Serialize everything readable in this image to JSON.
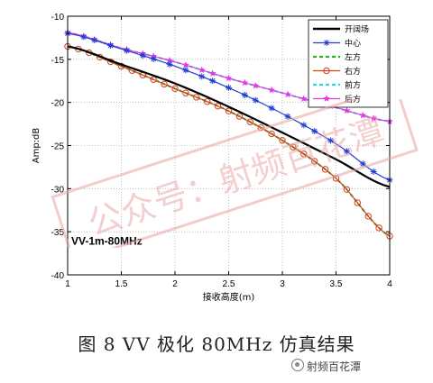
{
  "chart_data": {
    "type": "line",
    "title": "",
    "xlabel": "接收高度(m)",
    "ylabel": "Amp:dB",
    "xlim": [
      1,
      4
    ],
    "ylim": [
      -40,
      -10
    ],
    "xticks": [
      "1",
      "1.5",
      "2",
      "2.5",
      "3",
      "3.5",
      "4"
    ],
    "yticks": [
      "-10",
      "-15",
      "-20",
      "-25",
      "-30",
      "-35",
      "-40"
    ],
    "grid": true,
    "legend_position": "top-right",
    "annotation": "VV-1m-80MHz",
    "series": [
      {
        "name": "开阔场",
        "color": "#000000",
        "marker": "none",
        "line_style": "solid",
        "x": [
          1,
          1.5,
          2,
          2.5,
          3,
          3.5,
          4
        ],
        "y": [
          -13.5,
          -15.6,
          -17.8,
          -20.5,
          -23.5,
          -26.6,
          -29.8
        ]
      },
      {
        "name": "中心",
        "color": "#1f3fd0",
        "marker": "asterisk",
        "line_style": "solid",
        "x": [
          1,
          1.5,
          2,
          2.5,
          3,
          3.5,
          4
        ],
        "y": [
          -12.0,
          -13.8,
          -15.8,
          -18.3,
          -21.3,
          -24.8,
          -29.0
        ]
      },
      {
        "name": "左方",
        "color": "#22b522",
        "marker": "none",
        "line_style": "dashed",
        "x": [
          1,
          1.5,
          2,
          2.5,
          3,
          3.5,
          4
        ],
        "y": [
          -13.5,
          -15.8,
          -18.4,
          -21.0,
          -24.4,
          -28.8,
          -35.5
        ]
      },
      {
        "name": "右方",
        "color": "#d2401e",
        "marker": "circle",
        "line_style": "solid",
        "x": [
          1,
          1.5,
          2,
          2.5,
          3,
          3.5,
          4
        ],
        "y": [
          -13.5,
          -15.8,
          -18.4,
          -21.0,
          -24.4,
          -28.8,
          -35.5
        ]
      },
      {
        "name": "前方",
        "color": "#2ad8d8",
        "marker": "none",
        "line_style": "dashed",
        "x": [
          1,
          1.5,
          2,
          2.5,
          3,
          3.5,
          4
        ],
        "y": [
          -11.9,
          -13.7,
          -15.3,
          -17.2,
          -18.9,
          -20.6,
          -22.2
        ]
      },
      {
        "name": "后方",
        "color": "#e23ae2",
        "marker": "star",
        "line_style": "solid",
        "x": [
          1,
          1.5,
          2,
          2.5,
          3,
          3.5,
          4
        ],
        "y": [
          -11.9,
          -13.7,
          -15.3,
          -17.2,
          -18.9,
          -20.6,
          -22.2
        ]
      }
    ]
  },
  "caption": "图 8   VV 极化 80MHz 仿真结果",
  "watermark": {
    "text": "射频百花潭",
    "stamp_text": "公众号：射频百花潭"
  }
}
